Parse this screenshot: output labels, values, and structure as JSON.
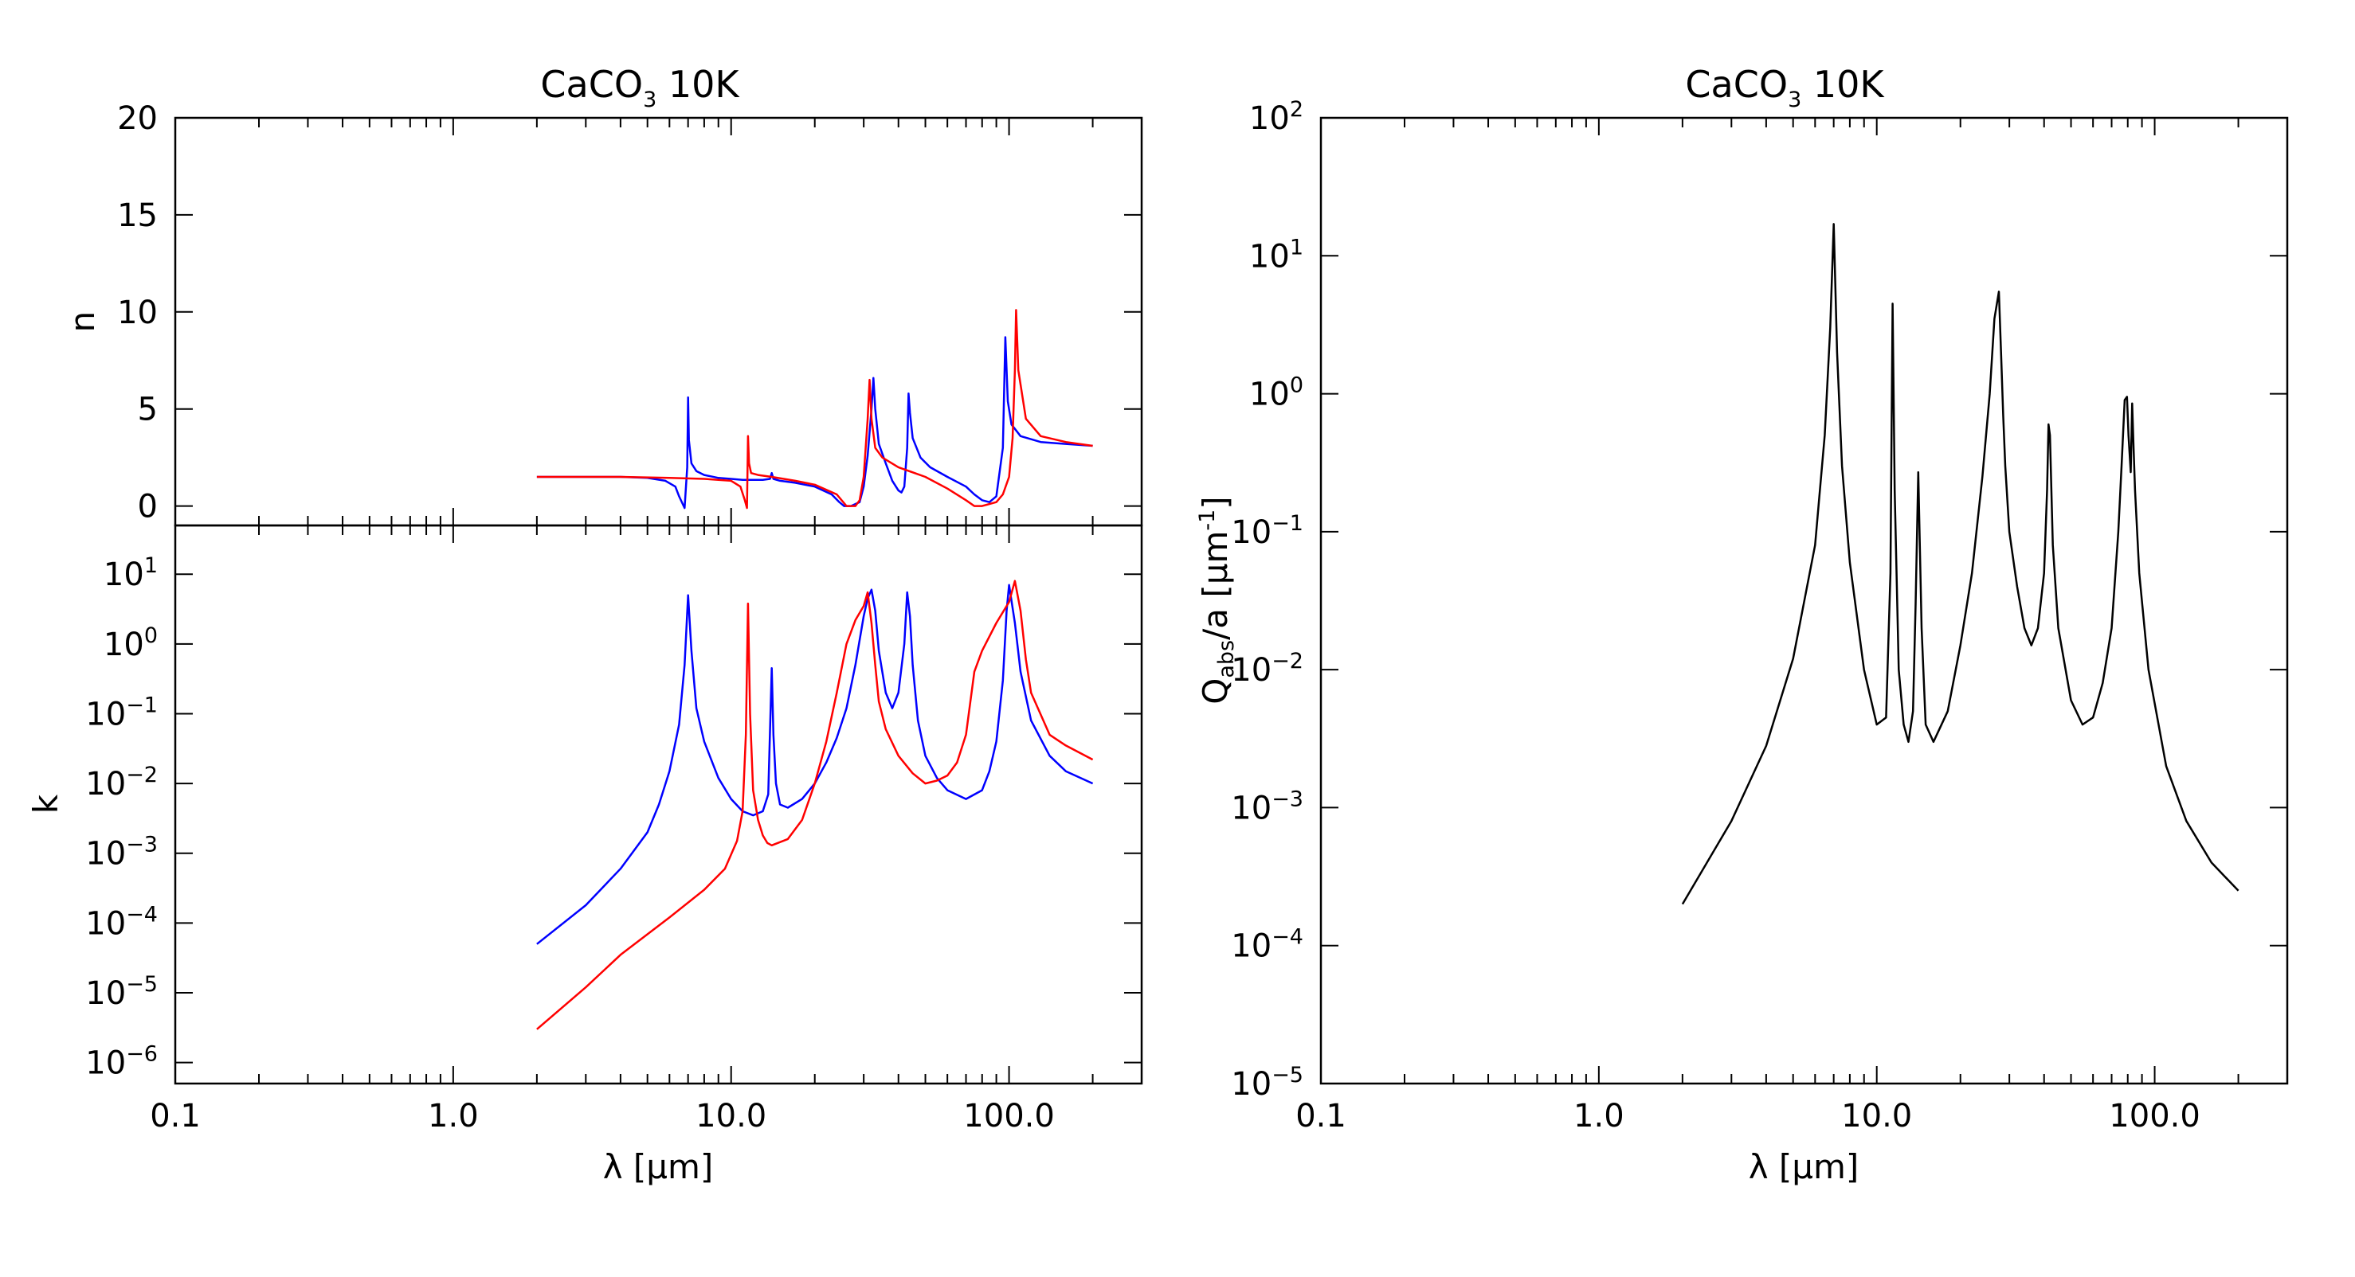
{
  "figure": {
    "left": {
      "title": "CaCO",
      "title_sub": "3",
      "title_tail": " 10K",
      "xlabel": "λ [μm]",
      "x_ticks": [
        "0.1",
        "1.0",
        "10.0",
        "100.0"
      ],
      "n_ylabel": "n",
      "k_ylabel": "k",
      "n_y_ticks": [
        "0",
        "5",
        "10",
        "15",
        "20"
      ],
      "k_y_ticks": [
        {
          "base": "10",
          "exp": "-6"
        },
        {
          "base": "10",
          "exp": "-5"
        },
        {
          "base": "10",
          "exp": "-4"
        },
        {
          "base": "10",
          "exp": "-3"
        },
        {
          "base": "10",
          "exp": "-2"
        },
        {
          "base": "10",
          "exp": "-1"
        },
        {
          "base": "10",
          "exp": "0"
        },
        {
          "base": "10",
          "exp": "1"
        }
      ]
    },
    "right": {
      "title": "CaCO",
      "title_sub": "3",
      "title_tail": " 10K",
      "xlabel": "λ [μm]",
      "ylabel_main": "Q",
      "ylabel_sub": "abs",
      "ylabel_mid": "/a [μm",
      "ylabel_sup": "-1",
      "ylabel_end": "]",
      "x_ticks": [
        "0.1",
        "1.0",
        "10.0",
        "100.0"
      ],
      "y_ticks": [
        {
          "base": "10",
          "exp": "-5"
        },
        {
          "base": "10",
          "exp": "-4"
        },
        {
          "base": "10",
          "exp": "-3"
        },
        {
          "base": "10",
          "exp": "-2"
        },
        {
          "base": "10",
          "exp": "-1"
        },
        {
          "base": "10",
          "exp": "0"
        },
        {
          "base": "10",
          "exp": "1"
        },
        {
          "base": "10",
          "exp": "2"
        }
      ]
    }
  },
  "chart_data": [
    {
      "type": "line",
      "title": "CaCO3 10K",
      "xlabel": "λ [μm]",
      "ylabel": "n",
      "xscale": "log",
      "xlim": [
        0.1,
        300
      ],
      "ylim": [
        -1,
        20
      ],
      "grid": false,
      "series": [
        {
          "color": "#0000ff",
          "x": [
            2,
            3,
            4,
            5,
            5.8,
            6.3,
            6.5,
            6.8,
            6.95,
            7.0,
            7.05,
            7.2,
            7.5,
            8,
            9,
            10,
            11,
            12,
            13,
            13.8,
            14,
            14.2,
            15,
            17,
            20,
            23,
            24.5,
            25.5,
            27,
            29,
            30,
            31,
            32,
            32.5,
            33,
            34,
            36,
            38,
            40,
            41,
            42,
            43,
            43.5,
            44,
            45,
            48,
            52,
            60,
            70,
            75,
            80,
            85,
            90,
            95,
            97,
            99,
            102,
            110,
            130,
            160,
            200
          ],
          "y": [
            1.5,
            1.5,
            1.5,
            1.45,
            1.3,
            1.0,
            0.5,
            -0.1,
            2.0,
            5.6,
            3.4,
            2.2,
            1.8,
            1.6,
            1.45,
            1.4,
            1.35,
            1.35,
            1.35,
            1.4,
            1.7,
            1.4,
            1.3,
            1.2,
            1.0,
            0.6,
            0.2,
            0.0,
            0.0,
            0.2,
            1.0,
            2.6,
            5.0,
            6.6,
            5.0,
            3.2,
            2.2,
            1.3,
            0.8,
            0.7,
            1.0,
            3.0,
            5.8,
            4.8,
            3.5,
            2.5,
            2.0,
            1.5,
            1.0,
            0.6,
            0.3,
            0.2,
            0.5,
            3.0,
            8.7,
            5.4,
            4.2,
            3.6,
            3.3,
            3.2,
            3.1
          ]
        },
        {
          "color": "#ff0000",
          "x": [
            2,
            4,
            6,
            8,
            10,
            10.8,
            11.2,
            11.4,
            11.5,
            11.6,
            11.8,
            12.5,
            14,
            17,
            20,
            24,
            26,
            28,
            29,
            30,
            31,
            31.5,
            32,
            33,
            35,
            40,
            50,
            60,
            70,
            75,
            80,
            90,
            95,
            100,
            103,
            105,
            106,
            108,
            115,
            130,
            160,
            200
          ],
          "y": [
            1.5,
            1.5,
            1.45,
            1.4,
            1.3,
            1.0,
            0.3,
            -0.1,
            3.6,
            2.2,
            1.7,
            1.6,
            1.5,
            1.3,
            1.1,
            0.6,
            0.0,
            0.0,
            0.3,
            1.5,
            4.5,
            6.5,
            4.5,
            3.0,
            2.5,
            2.0,
            1.5,
            0.9,
            0.3,
            0.0,
            0.0,
            0.2,
            0.6,
            1.5,
            3.5,
            7.0,
            10.1,
            7.0,
            4.5,
            3.6,
            3.3,
            3.1
          ]
        }
      ]
    },
    {
      "type": "line",
      "title": "",
      "xlabel": "λ [μm]",
      "ylabel": "k",
      "xscale": "log",
      "yscale": "log",
      "xlim": [
        0.1,
        300
      ],
      "ylim": [
        5e-07,
        50
      ],
      "grid": false,
      "series": [
        {
          "color": "#0000ff",
          "x": [
            2,
            3,
            4,
            5,
            5.5,
            6,
            6.5,
            6.8,
            7.0,
            7.2,
            7.5,
            8,
            9,
            10,
            11,
            12,
            13,
            13.6,
            14,
            14.2,
            14.5,
            15,
            16,
            18,
            20,
            22,
            24,
            26,
            28,
            30,
            31,
            32,
            33,
            34,
            36,
            38,
            40,
            42,
            43,
            44,
            45,
            47,
            50,
            55,
            60,
            70,
            80,
            85,
            90,
            95,
            98,
            100,
            105,
            110,
            120,
            140,
            160,
            200
          ],
          "y": [
            5e-05,
            0.00018,
            0.0006,
            0.002,
            0.005,
            0.015,
            0.07,
            0.5,
            5.0,
            0.8,
            0.12,
            0.04,
            0.012,
            0.006,
            0.004,
            0.0035,
            0.004,
            0.007,
            0.45,
            0.05,
            0.01,
            0.005,
            0.0045,
            0.006,
            0.01,
            0.02,
            0.045,
            0.12,
            0.5,
            2.5,
            4.5,
            6.0,
            3.0,
            0.8,
            0.2,
            0.12,
            0.2,
            1.0,
            5.5,
            2.5,
            0.5,
            0.08,
            0.025,
            0.012,
            0.008,
            0.006,
            0.008,
            0.015,
            0.04,
            0.3,
            3.0,
            7.0,
            2.0,
            0.4,
            0.08,
            0.025,
            0.015,
            0.01
          ]
        },
        {
          "color": "#ff0000",
          "x": [
            2,
            3,
            4,
            6,
            8,
            9.5,
            10.5,
            11.0,
            11.3,
            11.5,
            11.7,
            12,
            12.5,
            13,
            13.5,
            14,
            16,
            18,
            20,
            22,
            24,
            26,
            28,
            30,
            31,
            32,
            33,
            34,
            36,
            40,
            45,
            50,
            55,
            60,
            65,
            70,
            75,
            80,
            90,
            100,
            105,
            110,
            115,
            120,
            140,
            160,
            200
          ],
          "y": [
            3e-06,
            1.2e-05,
            3.5e-05,
            0.00012,
            0.0003,
            0.0006,
            0.0015,
            0.004,
            0.05,
            3.8,
            0.1,
            0.008,
            0.003,
            0.0018,
            0.0014,
            0.0013,
            0.0016,
            0.003,
            0.01,
            0.04,
            0.2,
            1.0,
            2.2,
            3.5,
            5.5,
            2.0,
            0.5,
            0.15,
            0.06,
            0.025,
            0.014,
            0.01,
            0.011,
            0.013,
            0.02,
            0.05,
            0.4,
            0.8,
            2.0,
            4.0,
            8.0,
            3.0,
            0.6,
            0.2,
            0.05,
            0.035,
            0.022
          ]
        }
      ]
    },
    {
      "type": "line",
      "title": "CaCO3 10K",
      "xlabel": "λ [μm]",
      "ylabel": "Qabs/a [μm-1]",
      "xscale": "log",
      "yscale": "log",
      "xlim": [
        0.1,
        300
      ],
      "ylim": [
        1e-05,
        100
      ],
      "grid": false,
      "series": [
        {
          "color": "#000000",
          "x": [
            2,
            3,
            4,
            5,
            6,
            6.5,
            6.8,
            7.0,
            7.2,
            7.5,
            8,
            9,
            10,
            10.8,
            11.2,
            11.4,
            11.6,
            12,
            12.5,
            13,
            13.5,
            13.8,
            14.1,
            14.5,
            15,
            16,
            18,
            20,
            22,
            24,
            25.5,
            26.5,
            27.5,
            28,
            28.5,
            29,
            30,
            32,
            34,
            36,
            38,
            40,
            41,
            41.5,
            42,
            43,
            45,
            50,
            55,
            60,
            65,
            70,
            74,
            76,
            78,
            79.5,
            80.5,
            82,
            83,
            84,
            85,
            88,
            95,
            110,
            130,
            160,
            200
          ],
          "y": [
            0.0002,
            0.0008,
            0.0028,
            0.012,
            0.08,
            0.5,
            3.0,
            17.0,
            2.0,
            0.3,
            0.06,
            0.01,
            0.004,
            0.0045,
            0.05,
            4.5,
            0.2,
            0.01,
            0.004,
            0.003,
            0.005,
            0.03,
            0.27,
            0.02,
            0.004,
            0.003,
            0.005,
            0.015,
            0.05,
            0.25,
            1.0,
            3.5,
            5.5,
            2.0,
            0.7,
            0.3,
            0.1,
            0.04,
            0.02,
            0.015,
            0.02,
            0.05,
            0.2,
            0.6,
            0.5,
            0.08,
            0.02,
            0.006,
            0.004,
            0.0045,
            0.008,
            0.02,
            0.1,
            0.3,
            0.9,
            0.95,
            0.5,
            0.27,
            0.85,
            0.4,
            0.2,
            0.05,
            0.01,
            0.002,
            0.0008,
            0.0004,
            0.00025
          ]
        }
      ]
    }
  ]
}
